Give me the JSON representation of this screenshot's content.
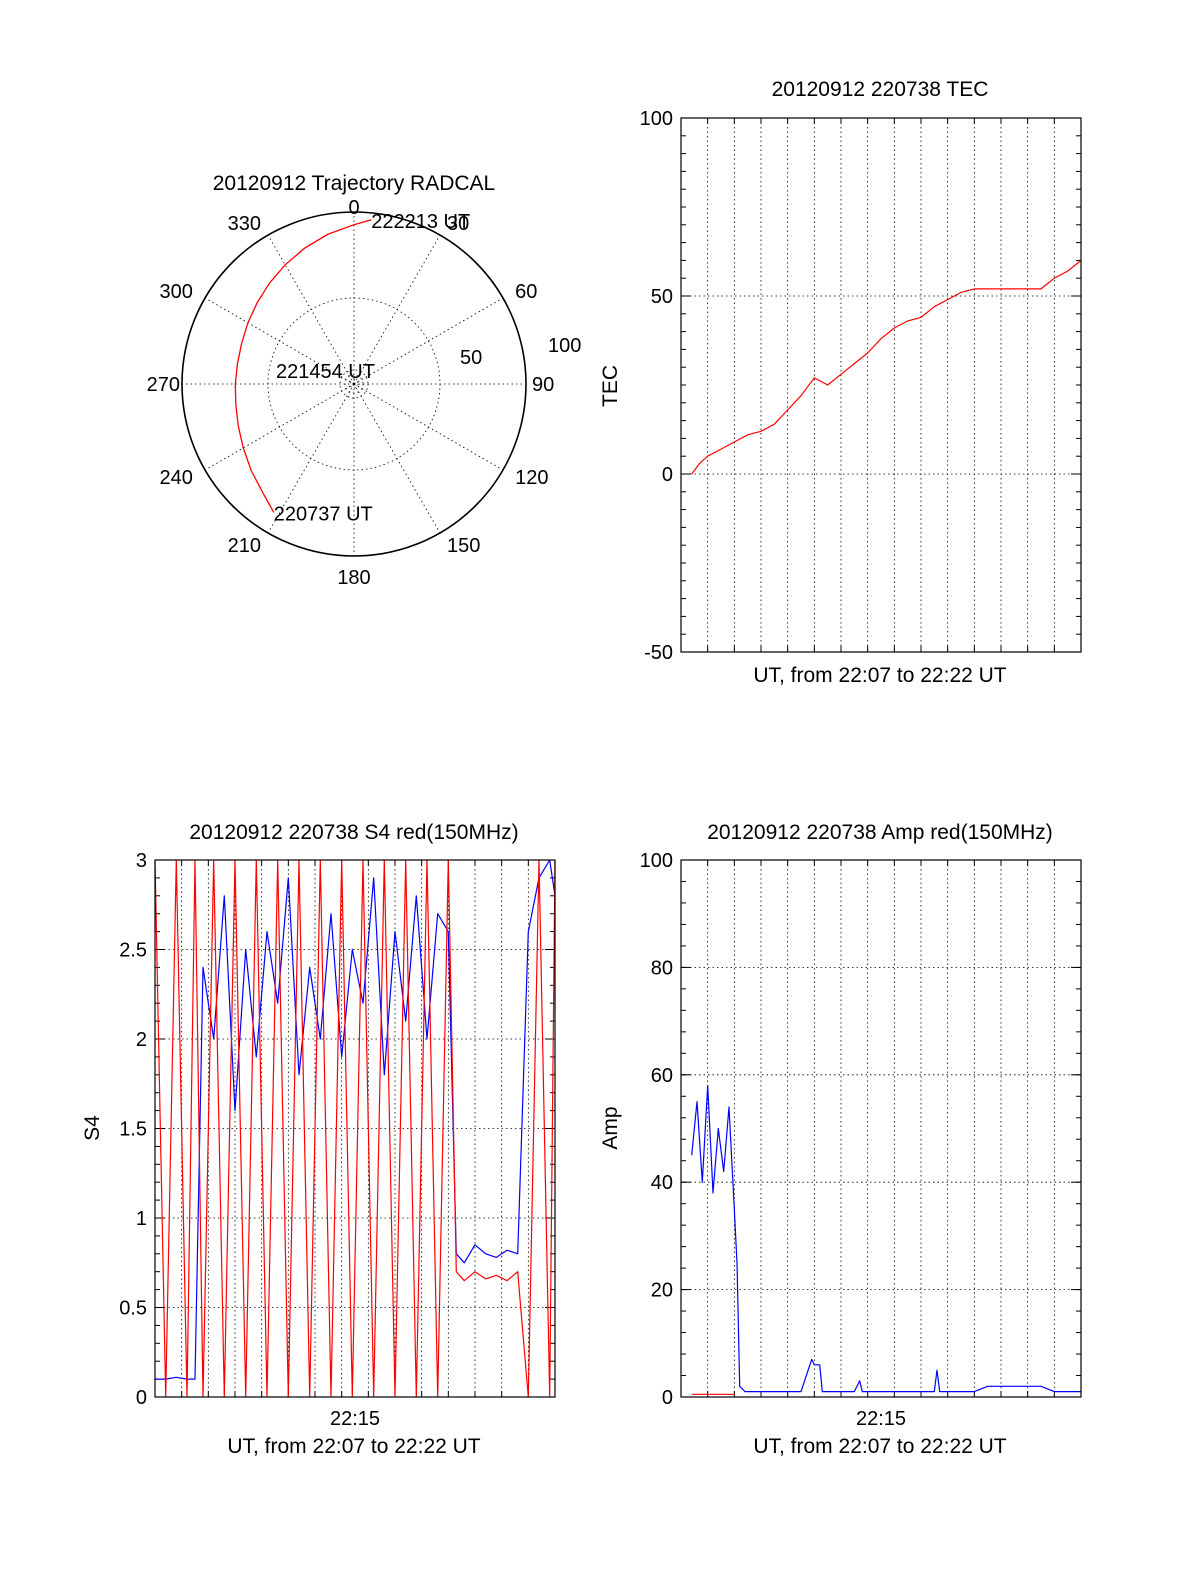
{
  "chart_data": [
    {
      "type": "scatter",
      "subtype": "polar-trajectory",
      "title": "20120912 Trajectory RADCAL",
      "angle_labels": [
        "0",
        "30",
        "60",
        "90",
        "120",
        "150",
        "180",
        "210",
        "240",
        "270",
        "300",
        "330"
      ],
      "radial_labels": [
        "50",
        "100"
      ],
      "r_max": 100,
      "rings": [
        50,
        100
      ],
      "trajectory": {
        "color": "#ff0000",
        "azimuth_deg": [
          212,
          220,
          230,
          240,
          250,
          260,
          270,
          280,
          290,
          300,
          310,
          320,
          330,
          340,
          350,
          360,
          366
        ],
        "zenith": [
          88,
          82.5,
          78.1,
          74.3,
          71.6,
          69.8,
          69,
          68.8,
          69.5,
          71.2,
          73.5,
          76.5,
          80,
          84,
          88.3,
          92.6,
          96
        ]
      },
      "annotations": [
        {
          "text": "222213 UT",
          "azimuth_deg": 366,
          "zenith": 96
        },
        {
          "text": "221454 UT",
          "azimuth_deg": 0,
          "zenith": 0
        },
        {
          "text": "220737 UT",
          "azimuth_deg": 212,
          "zenith": 88
        }
      ]
    },
    {
      "type": "line",
      "title": "20120912 220738 TEC",
      "xlabel": "UT, from 22:07 to 22:22 UT",
      "ylabel": "TEC",
      "xlim": [
        0,
        15
      ],
      "ylim": [
        -50,
        100
      ],
      "yticks": [
        -50,
        0,
        50,
        100
      ],
      "grid": true,
      "series": [
        {
          "color": "#ff0000",
          "x": [
            0.4,
            0.7,
            1.0,
            1.5,
            2.0,
            2.5,
            3.0,
            3.5,
            4.0,
            4.5,
            5.0,
            5.5,
            6.0,
            6.5,
            7.0,
            7.5,
            8.0,
            8.5,
            9.0,
            9.5,
            10.0,
            10.5,
            11.0,
            11.5,
            12.0,
            12.5,
            13.0,
            13.5,
            14.0,
            14.5,
            15.0
          ],
          "values": [
            0,
            3,
            5,
            7,
            9,
            11,
            12,
            14,
            18,
            22,
            27,
            25,
            28,
            31,
            34,
            38,
            41,
            43,
            44,
            47,
            49,
            51,
            52,
            52,
            52,
            52,
            52,
            52,
            55,
            57,
            60
          ]
        }
      ]
    },
    {
      "type": "line",
      "title": "20120912 220738 S4 red(150MHz)",
      "xlabel": "UT, from 22:07 to 22:22 UT",
      "ylabel": "S4",
      "xlim": [
        0,
        15
      ],
      "ylim": [
        0,
        3
      ],
      "xtick_labels": [
        {
          "x": 7.5,
          "label": "22:15"
        }
      ],
      "yticks": [
        0,
        0.5,
        1,
        1.5,
        2,
        2.5,
        3
      ],
      "ytick_labels": [
        "0",
        "0.5",
        "1",
        "1.5",
        "2",
        "2.5",
        "3"
      ],
      "grid": true,
      "series": [
        {
          "color": "#0000ff",
          "x": [
            0.0,
            0.4,
            0.8,
            1.2,
            1.5,
            1.8,
            2.2,
            2.6,
            3.0,
            3.4,
            3.8,
            4.2,
            4.6,
            5.0,
            5.4,
            5.8,
            6.2,
            6.6,
            7.0,
            7.4,
            7.8,
            8.2,
            8.6,
            9.0,
            9.4,
            9.8,
            10.2,
            10.6,
            11.0,
            11.3,
            11.6,
            12.0,
            12.4,
            12.8,
            13.2,
            13.6,
            14.0,
            14.4,
            14.8,
            15.0
          ],
          "values": [
            0.1,
            0.1,
            0.11,
            0.1,
            0.1,
            2.4,
            2.0,
            2.8,
            1.6,
            2.5,
            1.9,
            2.6,
            2.2,
            2.9,
            1.8,
            2.4,
            2.0,
            2.7,
            1.9,
            2.5,
            2.2,
            2.9,
            1.8,
            2.6,
            2.1,
            2.8,
            2.0,
            2.7,
            2.6,
            0.8,
            0.75,
            0.85,
            0.8,
            0.78,
            0.82,
            0.8,
            2.6,
            2.9,
            3.0,
            2.8
          ]
        },
        {
          "color": "#ff0000",
          "x": [
            0.0,
            0.4,
            0.8,
            1.2,
            1.5,
            1.8,
            2.2,
            2.6,
            3.0,
            3.4,
            3.8,
            4.2,
            4.6,
            5.0,
            5.4,
            5.8,
            6.2,
            6.6,
            7.0,
            7.4,
            7.8,
            8.2,
            8.6,
            9.0,
            9.4,
            9.8,
            10.2,
            10.6,
            11.0,
            11.3,
            11.6,
            12.0,
            12.4,
            12.8,
            13.2,
            13.6,
            14.0,
            14.4,
            14.8,
            15.0
          ],
          "values": [
            3.0,
            0.0,
            3.0,
            0.0,
            3.0,
            0.0,
            3.0,
            0.0,
            3.0,
            0.0,
            3.0,
            0.0,
            3.0,
            0.0,
            3.0,
            0.0,
            3.0,
            0.0,
            3.0,
            0.0,
            3.0,
            0.0,
            3.0,
            0.0,
            3.0,
            0.0,
            3.0,
            0.0,
            3.0,
            0.7,
            0.65,
            0.7,
            0.66,
            0.68,
            0.65,
            0.7,
            0.0,
            3.0,
            0.0,
            3.0
          ]
        }
      ]
    },
    {
      "type": "line",
      "title": "20120912 220738 Amp red(150MHz)",
      "xlabel": "UT, from 22:07 to 22:22 UT",
      "ylabel": "Amp",
      "xlim": [
        0,
        15
      ],
      "ylim": [
        0,
        100
      ],
      "xtick_labels": [
        {
          "x": 7.5,
          "label": "22:15"
        }
      ],
      "yticks": [
        0,
        20,
        40,
        60,
        80,
        100
      ],
      "ytick_labels": [
        "0",
        "20",
        "40",
        "60",
        "80",
        "100"
      ],
      "grid": true,
      "series": [
        {
          "color": "#0000ff",
          "x": [
            0.4,
            0.6,
            0.8,
            1.0,
            1.2,
            1.4,
            1.6,
            1.8,
            2.0,
            2.1,
            2.2,
            2.4,
            3.0,
            3.5,
            4.0,
            4.5,
            4.9,
            5.0,
            5.2,
            5.3,
            6.0,
            6.5,
            6.7,
            6.8,
            7.0,
            8.0,
            8.5,
            9.0,
            9.5,
            9.6,
            9.7,
            10.0,
            11.0,
            11.5,
            12.0,
            12.5,
            13.0,
            13.5,
            14.0,
            14.5,
            15.0
          ],
          "values": [
            45,
            55,
            40,
            58,
            38,
            50,
            42,
            54,
            35,
            25,
            2,
            1,
            1,
            1,
            1,
            1,
            7,
            6,
            6,
            1,
            1,
            1,
            3,
            1,
            1,
            1,
            1,
            1,
            1,
            5,
            1,
            1,
            1,
            2,
            2,
            2,
            2,
            2,
            1,
            1,
            1
          ]
        },
        {
          "color": "#ff0000",
          "x": [
            0.4,
            1.0,
            1.6,
            2.0
          ],
          "values": [
            0.5,
            0.5,
            0.5,
            0.5
          ]
        }
      ]
    }
  ]
}
